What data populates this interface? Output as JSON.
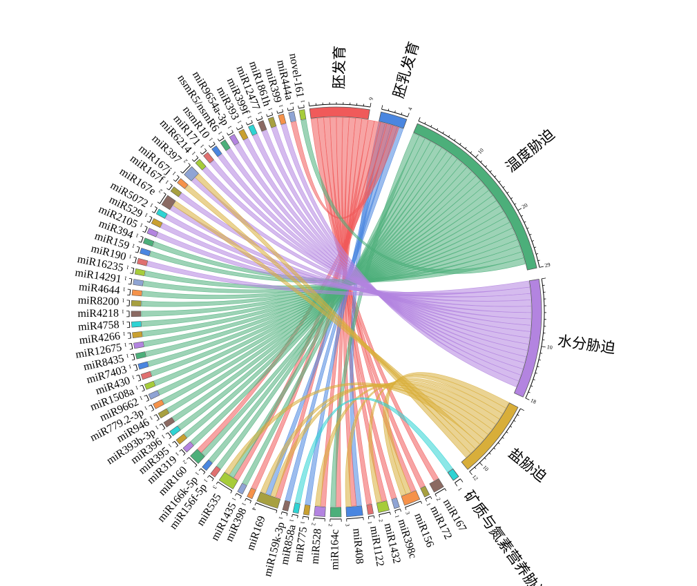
{
  "chart_data": {
    "type": "chord",
    "stress_categories": [
      {
        "name": "胚发育",
        "count": 9,
        "color": "#f05a5a",
        "ticks": [
          {
            "v": 9,
            "label": "9"
          }
        ]
      },
      {
        "name": "胚乳发育",
        "count": 4,
        "color": "#4a86e0",
        "ticks": [
          {
            "v": 4,
            "label": "4"
          }
        ]
      },
      {
        "name": "温度胁迫",
        "count": 29,
        "color": "#4caf7a",
        "ticks": [
          {
            "v": 10,
            "label": "10"
          },
          {
            "v": 20,
            "label": "20"
          },
          {
            "v": 29,
            "label": "29"
          }
        ]
      },
      {
        "name": "水分胁迫",
        "count": 18,
        "color": "#b384e0",
        "ticks": [
          {
            "v": 10,
            "label": "10"
          },
          {
            "v": 18,
            "label": "18"
          }
        ]
      },
      {
        "name": "盐胁迫",
        "count": 12,
        "color": "#d8ae3a",
        "ticks": [
          {
            "v": 10,
            "label": "10"
          },
          {
            "v": 12,
            "label": "12"
          }
        ]
      },
      {
        "name": "矿质与氮素营养胁迫",
        "count": 1,
        "color": "#2ed3d3",
        "ticks": [
          {
            "v": 1,
            "label": "1"
          }
        ]
      }
    ],
    "mirnas": [
      {
        "name": "miR167",
        "count": 2,
        "color": "#8b6a62",
        "links": [
          0
        ]
      },
      {
        "name": "miR172",
        "count": 1,
        "color": "#a7a040",
        "links": [
          0
        ]
      },
      {
        "name": "miR156",
        "count": 3,
        "color": "#f5924a",
        "links": [
          0,
          4,
          4
        ]
      },
      {
        "name": "miR398c",
        "count": 1,
        "color": "#8fa4d4",
        "links": [
          0
        ]
      },
      {
        "name": "miR1432",
        "count": 2,
        "color": "#a6cc3a",
        "links": [
          0,
          4
        ]
      },
      {
        "name": "miR1122",
        "count": 1,
        "color": "#e07070",
        "links": [
          0
        ]
      },
      {
        "name": "miR408",
        "count": 3,
        "color": "#4a86e0",
        "links": [
          1,
          0,
          4
        ]
      },
      {
        "name": "miR164c",
        "count": 2,
        "color": "#4caf7a",
        "links": [
          0,
          2
        ]
      },
      {
        "name": "miR528",
        "count": 2,
        "color": "#b384e0",
        "links": [
          0,
          4
        ]
      },
      {
        "name": "miR775",
        "count": 1,
        "color": "#c9a030",
        "links": [
          1
        ]
      },
      {
        "name": "miR858a",
        "count": 1,
        "color": "#2ed3d3",
        "links": [
          5
        ]
      },
      {
        "name": "miR159k-3p",
        "count": 1,
        "color": "#8b6a62",
        "links": [
          1
        ]
      },
      {
        "name": "miR169",
        "count": 4,
        "color": "#a7a040",
        "links": [
          0,
          4,
          1,
          4
        ]
      },
      {
        "name": "miR398",
        "count": 1,
        "color": "#f5924a",
        "links": [
          0
        ]
      },
      {
        "name": "miR1435",
        "count": 1,
        "color": "#8fa4d4",
        "links": [
          2
        ]
      },
      {
        "name": "miR535",
        "count": 3,
        "color": "#a6cc3a",
        "links": [
          0,
          2,
          4
        ]
      },
      {
        "name": "miR156f-5p",
        "count": 1,
        "color": "#e07070",
        "links": [
          2
        ]
      },
      {
        "name": "miR166k-5p",
        "count": 1,
        "color": "#4a86e0",
        "links": [
          2
        ]
      },
      {
        "name": "miR160",
        "count": 2,
        "color": "#4caf7a",
        "links": [
          2,
          0
        ]
      },
      {
        "name": "miR319",
        "count": 1,
        "color": "#b384e0",
        "links": [
          2
        ]
      },
      {
        "name": "miR395",
        "count": 1,
        "color": "#c9a030",
        "links": [
          2
        ]
      },
      {
        "name": "miR396",
        "count": 1,
        "color": "#2ed3d3",
        "links": [
          2
        ]
      },
      {
        "name": "miR393b-3p",
        "count": 1,
        "color": "#8b6a62",
        "links": [
          2
        ]
      },
      {
        "name": "miR946",
        "count": 1,
        "color": "#a7a040",
        "links": [
          2
        ]
      },
      {
        "name": "miR779.2-3p",
        "count": 1,
        "color": "#f5924a",
        "links": [
          2
        ]
      },
      {
        "name": "miR9662",
        "count": 1,
        "color": "#8fa4d4",
        "links": [
          2
        ]
      },
      {
        "name": "miR1508a",
        "count": 1,
        "color": "#a6cc3a",
        "links": [
          2
        ]
      },
      {
        "name": "miR430",
        "count": 1,
        "color": "#e07070",
        "links": [
          2
        ]
      },
      {
        "name": "miR7403",
        "count": 1,
        "color": "#4a86e0",
        "links": [
          2
        ]
      },
      {
        "name": "miR8435",
        "count": 1,
        "color": "#4caf7a",
        "links": [
          2
        ]
      },
      {
        "name": "miR12675",
        "count": 1,
        "color": "#b384e0",
        "links": [
          2
        ]
      },
      {
        "name": "miR4266",
        "count": 1,
        "color": "#c9a030",
        "links": [
          2
        ]
      },
      {
        "name": "miR4758",
        "count": 1,
        "color": "#2ed3d3",
        "links": [
          2
        ]
      },
      {
        "name": "miR4218",
        "count": 1,
        "color": "#8b6a62",
        "links": [
          2
        ]
      },
      {
        "name": "miR8200",
        "count": 1,
        "color": "#a7a040",
        "links": [
          2
        ]
      },
      {
        "name": "miR4644",
        "count": 1,
        "color": "#f5924a",
        "links": [
          2
        ]
      },
      {
        "name": "miR14291",
        "count": 1,
        "color": "#8fa4d4",
        "links": [
          2
        ]
      },
      {
        "name": "miR16235",
        "count": 1,
        "color": "#a6cc3a",
        "links": [
          2
        ]
      },
      {
        "name": "miR190",
        "count": 1,
        "color": "#e07070",
        "links": [
          3
        ]
      },
      {
        "name": "miR159",
        "count": 1,
        "color": "#4a86e0",
        "links": [
          2
        ]
      },
      {
        "name": "miR394",
        "count": 1,
        "color": "#4caf7a",
        "links": [
          2
        ]
      },
      {
        "name": "miR2105",
        "count": 1,
        "color": "#b384e0",
        "links": [
          3
        ]
      },
      {
        "name": "miR529",
        "count": 1,
        "color": "#c9a030",
        "links": [
          3
        ]
      },
      {
        "name": "miR5072",
        "count": 1,
        "color": "#2ed3d3",
        "links": [
          3
        ]
      },
      {
        "name": "miR167e",
        "count": 2,
        "color": "#8b6a62",
        "links": [
          3,
          4
        ]
      },
      {
        "name": "miR167f",
        "count": 1,
        "color": "#a7a040",
        "links": [
          3
        ]
      },
      {
        "name": "miR167j",
        "count": 1,
        "color": "#f5924a",
        "links": [
          4
        ]
      },
      {
        "name": "miR397",
        "count": 2,
        "color": "#8fa4d4",
        "links": [
          3,
          4
        ]
      },
      {
        "name": "miR6214",
        "count": 1,
        "color": "#a6cc3a",
        "links": [
          3
        ]
      },
      {
        "name": "miR171",
        "count": 1,
        "color": "#e07070",
        "links": [
          3
        ]
      },
      {
        "name": "nsmR10",
        "count": 1,
        "color": "#4a86e0",
        "links": [
          3
        ]
      },
      {
        "name": "nsmR5/nsmR6",
        "count": 1,
        "color": "#4caf7a",
        "links": [
          3
        ]
      },
      {
        "name": "miR9654a-3p",
        "count": 1,
        "color": "#b384e0",
        "links": [
          3
        ]
      },
      {
        "name": "miR393",
        "count": 1,
        "color": "#c9a030",
        "links": [
          3
        ]
      },
      {
        "name": "miR399f",
        "count": 1,
        "color": "#2ed3d3",
        "links": [
          3
        ]
      },
      {
        "name": "miR12477",
        "count": 1,
        "color": "#8b6a62",
        "links": [
          3
        ]
      },
      {
        "name": "miR1861h",
        "count": 1,
        "color": "#a7a040",
        "links": [
          3
        ]
      },
      {
        "name": "miR399",
        "count": 1,
        "color": "#f5924a",
        "links": [
          3
        ]
      },
      {
        "name": "miR444a",
        "count": 1,
        "color": "#8fa4d4",
        "links": [
          0
        ]
      },
      {
        "name": "novel-161",
        "count": 1,
        "color": "#a6cc3a",
        "links": [
          2
        ]
      }
    ]
  }
}
